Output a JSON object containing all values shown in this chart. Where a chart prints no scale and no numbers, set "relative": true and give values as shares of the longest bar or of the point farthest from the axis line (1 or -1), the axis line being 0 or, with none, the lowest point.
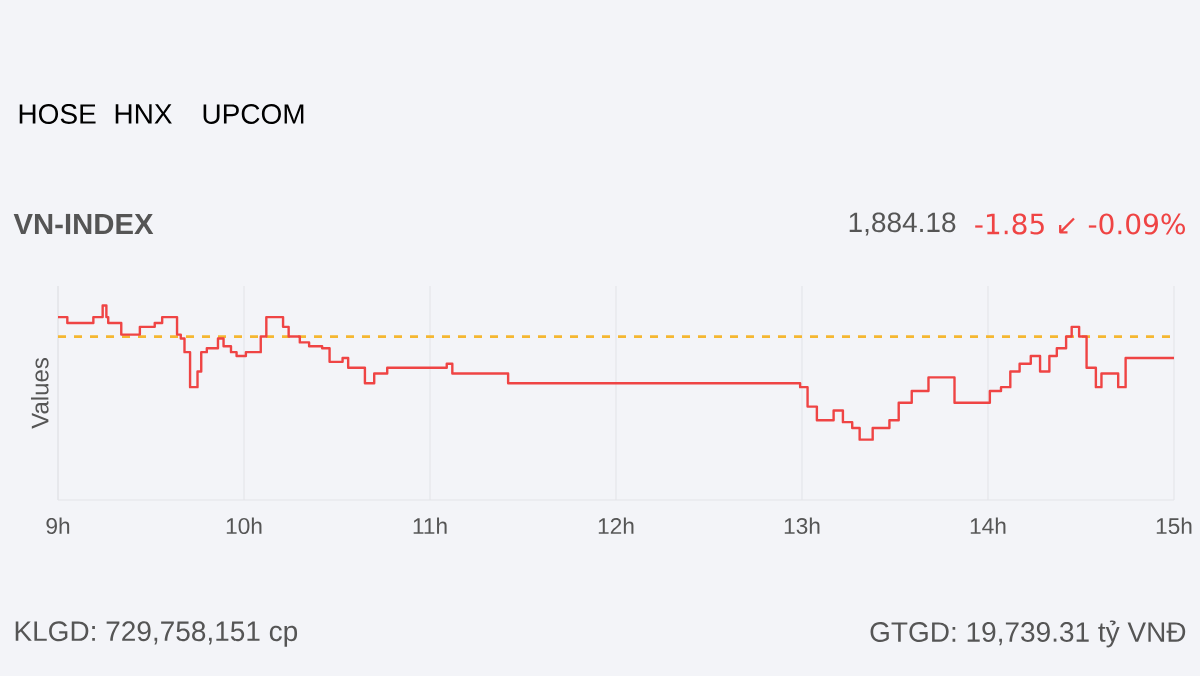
{
  "chart_data": {
    "type": "step",
    "title": "VN-INDEX",
    "ylabel": "Values",
    "relative": true,
    "color": "#ef4444",
    "x": [
      9.0,
      9.05,
      9.19,
      9.24,
      9.26,
      9.27,
      9.34,
      9.44,
      9.52,
      9.56,
      9.64,
      9.66,
      9.68,
      9.71,
      9.75,
      9.77,
      9.8,
      9.86,
      9.89,
      9.93,
      9.96,
      10.01,
      10.09,
      10.12,
      10.21,
      10.24,
      10.3,
      10.35,
      10.42,
      10.46,
      10.53,
      10.56,
      10.65,
      10.7,
      10.77,
      11.09,
      11.12,
      11.42,
      12.99,
      13.03,
      13.08,
      13.17,
      13.22,
      13.27,
      13.31,
      13.38,
      13.47,
      13.52,
      13.59,
      13.68,
      13.82,
      14.01,
      14.07,
      14.12,
      14.17,
      14.23,
      14.28,
      14.33,
      14.37,
      14.42,
      14.45,
      14.49,
      14.53,
      14.58,
      14.61,
      14.7,
      14.74,
      15.0
    ],
    "values": [
      0.94,
      0.91,
      0.94,
      1.0,
      0.94,
      0.91,
      0.85,
      0.89,
      0.91,
      0.94,
      0.85,
      0.83,
      0.76,
      0.58,
      0.66,
      0.76,
      0.78,
      0.83,
      0.79,
      0.76,
      0.74,
      0.76,
      0.84,
      0.94,
      0.89,
      0.84,
      0.81,
      0.79,
      0.78,
      0.71,
      0.73,
      0.68,
      0.6,
      0.65,
      0.68,
      0.7,
      0.65,
      0.6,
      0.58,
      0.48,
      0.41,
      0.46,
      0.4,
      0.37,
      0.31,
      0.37,
      0.41,
      0.5,
      0.56,
      0.63,
      0.5,
      0.56,
      0.58,
      0.66,
      0.7,
      0.74,
      0.66,
      0.74,
      0.78,
      0.84,
      0.89,
      0.84,
      0.68,
      0.58,
      0.65,
      0.58,
      0.73,
      0.73
    ],
    "xlim": [
      9,
      15
    ],
    "xticks": [
      {
        "value": 9,
        "label": "9h"
      },
      {
        "value": 10,
        "label": "10h"
      },
      {
        "value": 11,
        "label": "11h"
      },
      {
        "value": 12,
        "label": "12h"
      },
      {
        "value": 13,
        "label": "13h"
      },
      {
        "value": 14,
        "label": "14h"
      },
      {
        "value": 15,
        "label": "15h"
      }
    ],
    "grid": "x",
    "marker": "none",
    "line_style": "solid",
    "ref_lines": [
      {
        "axis": "y",
        "value": 0.84,
        "color": "#f5b731",
        "line_style": "dashed"
      }
    ],
    "annotations": [
      "HOSE",
      "HNX",
      "UPCOM",
      "1,884.18",
      "-1.85 ↙ -0.09%",
      "KLGD: 729,758,151 cp",
      "GTGD: 19,739.31 tỷ VNĐ"
    ]
  }
}
